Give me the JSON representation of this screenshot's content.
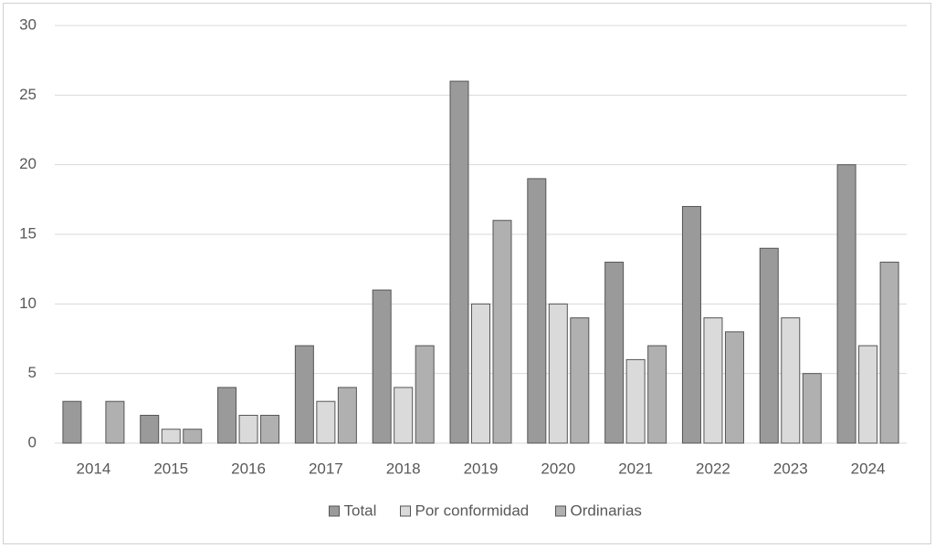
{
  "chart_data": {
    "type": "bar",
    "categories": [
      "2014",
      "2015",
      "2016",
      "2017",
      "2018",
      "2019",
      "2020",
      "2021",
      "2022",
      "2023",
      "2024"
    ],
    "series": [
      {
        "name": "Total",
        "color": "#9a9a9a",
        "values": [
          3,
          2,
          4,
          7,
          11,
          26,
          19,
          13,
          17,
          14,
          20
        ]
      },
      {
        "name": "Por conformidad",
        "color": "#dadada",
        "values": [
          0,
          1,
          2,
          3,
          4,
          10,
          10,
          6,
          9,
          9,
          7
        ]
      },
      {
        "name": "Ordinarias",
        "color": "#b0b0b0",
        "values": [
          3,
          1,
          2,
          4,
          7,
          16,
          9,
          7,
          8,
          5,
          13
        ]
      }
    ],
    "ylim": [
      0,
      30
    ],
    "yticks": [
      0,
      5,
      10,
      15,
      20,
      25,
      30
    ],
    "grid": true,
    "legend": "bottom"
  }
}
